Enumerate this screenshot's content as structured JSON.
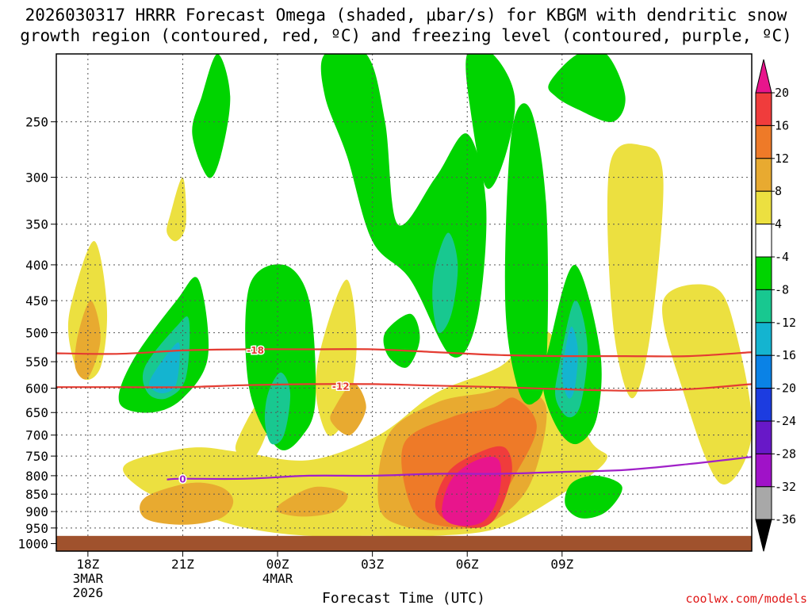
{
  "title": "2026030317 HRRR Forecast Omega (shaded, µbar/s) for KBGM with dendritic snow\ngrowth region (contoured, red, ºC) and freezing level (contoured, purple, ºC)",
  "watermark": "coolwx.com/models",
  "chart_data": {
    "type": "heatmap",
    "title": "2026030317 HRRR Forecast Omega (shaded, µbar/s) for KBGM with dendritic snow growth region (contoured, red, ºC) and freezing level (contoured, purple, ºC)",
    "xlabel": "Forecast Time (UTC)",
    "ylabel": "",
    "x_range_hours": [
      -1,
      21
    ],
    "y_range_hpa": [
      200,
      1025
    ],
    "x_ticks": [
      {
        "hour": 0,
        "label": "18Z",
        "sub": [
          "3MAR",
          "2026"
        ]
      },
      {
        "hour": 3,
        "label": "21Z",
        "sub": []
      },
      {
        "hour": 6,
        "label": "00Z",
        "sub": [
          "4MAR"
        ]
      },
      {
        "hour": 9,
        "label": "03Z",
        "sub": []
      },
      {
        "hour": 12,
        "label": "06Z",
        "sub": []
      },
      {
        "hour": 15,
        "label": "09Z",
        "sub": []
      }
    ],
    "y_ticks": [
      250,
      300,
      350,
      400,
      450,
      500,
      550,
      600,
      650,
      700,
      750,
      800,
      850,
      900,
      950,
      1000
    ],
    "colorbar": {
      "labels": [
        "20",
        "16",
        "12",
        "8",
        "4",
        "-4",
        "-8",
        "-12",
        "-16",
        "-20",
        "-24",
        "-28",
        "-32",
        "-36"
      ],
      "levels": [
        20,
        16,
        12,
        8,
        4,
        -4,
        -8,
        -12,
        -16,
        -20,
        -24,
        -28,
        -32,
        -36
      ],
      "colors": [
        "#e8158c",
        "#f03c3c",
        "#ee7a28",
        "#e8aa30",
        "#ece040",
        "#ffffff",
        "#00d400",
        "#18c890",
        "#14b4d0",
        "#0a82e6",
        "#1c3ce0",
        "#6818c8",
        "#a012c8",
        "#a8a8a8"
      ]
    },
    "regions": [
      {
        "level": "pos4",
        "x": [
          1.2,
          3.2,
          4.8,
          7.0,
          9.2,
          11.0,
          13.0,
          14.6,
          15.8,
          16.4,
          14.8,
          13.0,
          11.0,
          9.0,
          7.0,
          5.0,
          3.0,
          1.6
        ],
        "p": [
          770,
          730,
          740,
          760,
          700,
          610,
          560,
          500,
          700,
          760,
          860,
          950,
          975,
          975,
          975,
          950,
          890,
          830
        ]
      },
      {
        "level": "pos4",
        "x": [
          -0.5,
          0.2,
          0.6,
          0.4,
          -0.2,
          -0.6
        ],
        "p": [
          450,
          370,
          460,
          560,
          580,
          510
        ]
      },
      {
        "level": "pos4",
        "x": [
          2.6,
          3.0,
          3.1,
          2.8,
          2.5
        ],
        "p": [
          340,
          300,
          350,
          370,
          360
        ]
      },
      {
        "level": "pos4",
        "x": [
          4.8,
          5.5,
          5.7,
          5.2,
          4.7
        ],
        "p": [
          700,
          620,
          680,
          760,
          740
        ]
      },
      {
        "level": "pos4",
        "x": [
          16.5,
          17.5,
          18.2,
          17.8,
          17.2,
          16.6
        ],
        "p": [
          290,
          270,
          300,
          500,
          620,
          480
        ]
      },
      {
        "level": "pos4",
        "x": [
          18.2,
          19.8,
          20.5,
          21.0,
          20.0,
          18.8
        ],
        "p": [
          450,
          430,
          500,
          700,
          820,
          600
        ]
      },
      {
        "level": "pos4",
        "x": [
          7.5,
          8.2,
          8.5,
          8.2,
          7.6,
          7.2
        ],
        "p": [
          500,
          420,
          520,
          650,
          700,
          600
        ]
      },
      {
        "level": "pos8",
        "x": [
          9.5,
          11.0,
          12.5,
          13.5,
          14.5,
          14.0,
          12.8,
          11.5,
          10.0,
          9.2
        ],
        "p": [
          700,
          630,
          610,
          600,
          640,
          820,
          930,
          955,
          945,
          880
        ]
      },
      {
        "level": "pos8",
        "x": [
          1.8,
          3.2,
          4.2,
          4.6,
          4.2,
          3.0,
          1.8
        ],
        "p": [
          860,
          820,
          830,
          870,
          920,
          940,
          920
        ]
      },
      {
        "level": "pos8",
        "x": [
          6.2,
          7.2,
          8.2,
          7.8,
          6.8,
          6.0
        ],
        "p": [
          870,
          830,
          850,
          900,
          915,
          900
        ]
      },
      {
        "level": "pos8",
        "x": [
          7.8,
          8.4,
          8.8,
          8.3,
          7.7
        ],
        "p": [
          640,
          590,
          640,
          700,
          670
        ]
      },
      {
        "level": "pos8",
        "x": [
          -0.3,
          0.1,
          0.4,
          0.0,
          -0.4
        ],
        "p": [
          500,
          450,
          510,
          580,
          560
        ]
      },
      {
        "level": "pos12",
        "x": [
          10.0,
          11.5,
          12.8,
          13.5,
          14.2,
          13.5,
          12.5,
          11.0,
          10.2
        ],
        "p": [
          720,
          660,
          640,
          620,
          680,
          800,
          930,
          940,
          880
        ]
      },
      {
        "level": "pos16",
        "x": [
          11.4,
          12.4,
          13.2,
          13.4,
          12.8,
          11.8,
          11.0
        ],
        "p": [
          790,
          740,
          730,
          800,
          930,
          945,
          890
        ]
      },
      {
        "level": "pos20",
        "x": [
          11.5,
          12.3,
          13.0,
          13.0,
          12.5,
          11.6,
          11.2
        ],
        "p": [
          810,
          760,
          760,
          850,
          930,
          940,
          900
        ]
      },
      {
        "level": "neg4",
        "x": [
          1.4,
          2.8,
          3.5,
          3.8,
          3.0,
          2.0,
          1.0
        ],
        "p": [
          550,
          450,
          420,
          540,
          620,
          650,
          630
        ]
      },
      {
        "level": "neg4",
        "x": [
          3.6,
          4.1,
          4.5,
          4.2,
          3.8,
          3.3
        ],
        "p": [
          230,
          200,
          230,
          280,
          300,
          260
        ]
      },
      {
        "level": "neg4",
        "x": [
          5.1,
          6.2,
          7.0,
          7.2,
          6.8,
          6.0,
          5.1
        ],
        "p": [
          430,
          400,
          450,
          620,
          700,
          730,
          600
        ]
      },
      {
        "level": "neg4",
        "x": [
          7.5,
          8.8,
          9.4,
          9.8,
          11.0,
          12.0,
          12.6,
          12.3,
          11.5,
          10.2,
          9.0,
          8.2,
          7.5
        ],
        "p": [
          200,
          200,
          250,
          350,
          300,
          260,
          330,
          480,
          540,
          420,
          370,
          280,
          230
        ]
      },
      {
        "level": "neg4",
        "x": [
          12.0,
          12.8,
          13.5,
          13.2,
          12.6,
          12.1
        ],
        "p": [
          200,
          200,
          230,
          280,
          310,
          240
        ]
      },
      {
        "level": "neg4",
        "x": [
          13.4,
          14.0,
          14.5,
          14.5,
          14.1,
          13.6,
          13.2
        ],
        "p": [
          260,
          240,
          330,
          560,
          630,
          600,
          450
        ]
      },
      {
        "level": "neg4",
        "x": [
          14.6,
          15.5,
          16.4,
          17.0,
          16.6,
          15.5,
          14.8
        ],
        "p": [
          220,
          200,
          200,
          230,
          250,
          240,
          230
        ]
      },
      {
        "level": "neg4",
        "x": [
          14.6,
          15.4,
          16.2,
          16.1,
          15.5,
          14.9,
          14.4
        ],
        "p": [
          520,
          400,
          530,
          660,
          720,
          690,
          600
        ]
      },
      {
        "level": "neg4",
        "x": [
          15.3,
          16.1,
          16.9,
          16.4,
          15.6,
          15.1
        ],
        "p": [
          820,
          800,
          830,
          900,
          920,
          880
        ]
      },
      {
        "level": "neg4",
        "x": [
          9.4,
          10.2,
          10.5,
          10.1,
          9.5
        ],
        "p": [
          500,
          470,
          510,
          560,
          540
        ]
      },
      {
        "level": "neg8",
        "x": [
          1.8,
          2.8,
          3.2,
          3.1,
          2.5,
          1.9
        ],
        "p": [
          560,
          490,
          480,
          580,
          620,
          610
        ]
      },
      {
        "level": "neg8",
        "x": [
          5.7,
          6.1,
          6.4,
          6.2,
          5.8,
          5.6
        ],
        "p": [
          610,
          570,
          610,
          700,
          720,
          670
        ]
      },
      {
        "level": "neg8",
        "x": [
          14.9,
          15.4,
          15.8,
          15.6,
          15.2,
          14.8
        ],
        "p": [
          560,
          450,
          520,
          630,
          660,
          620
        ]
      },
      {
        "level": "neg8",
        "x": [
          11.0,
          11.4,
          11.7,
          11.5,
          11.1,
          10.9
        ],
        "p": [
          400,
          360,
          400,
          470,
          500,
          450
        ]
      },
      {
        "level": "neg12",
        "x": [
          2.0,
          2.6,
          2.9,
          2.8,
          2.4,
          2.0
        ],
        "p": [
          580,
          530,
          520,
          590,
          610,
          600
        ]
      },
      {
        "level": "neg12",
        "x": [
          15.1,
          15.3,
          15.5,
          15.4,
          15.2,
          15.0
        ],
        "p": [
          530,
          490,
          530,
          600,
          620,
          580
        ]
      }
    ],
    "contours": [
      {
        "name": "dendritic -18 C",
        "color": "#e43c32",
        "label": "-18",
        "label_hour": 5.3,
        "label_p": 530,
        "x": [
          -1,
          1,
          3,
          5,
          7,
          9,
          11,
          13,
          15,
          17,
          19,
          21
        ],
        "p": [
          535,
          536,
          530,
          528,
          528,
          528,
          533,
          538,
          540,
          540,
          540,
          533
        ]
      },
      {
        "name": "dendritic -12 C",
        "color": "#e43c32",
        "label": "-12",
        "label_hour": 8.0,
        "label_p": 597,
        "x": [
          -1,
          1,
          3,
          5,
          7,
          9,
          11,
          13,
          15,
          17,
          19,
          21
        ],
        "p": [
          598,
          598,
          598,
          594,
          592,
          592,
          595,
          598,
          602,
          605,
          602,
          592
        ]
      },
      {
        "name": "freezing level 0 C",
        "color": "#a020c8",
        "label": "0",
        "label_hour": 3.0,
        "label_p": 810,
        "x": [
          2.5,
          3.0,
          5.0,
          7.0,
          9.0,
          11.0,
          13.0,
          15.0,
          17.0,
          19.0,
          21.0
        ],
        "p": [
          810,
          808,
          808,
          800,
          800,
          795,
          795,
          790,
          785,
          770,
          752
        ]
      }
    ],
    "ground": {
      "from_hpa": 975,
      "color": "#a0522d"
    },
    "series": []
  }
}
